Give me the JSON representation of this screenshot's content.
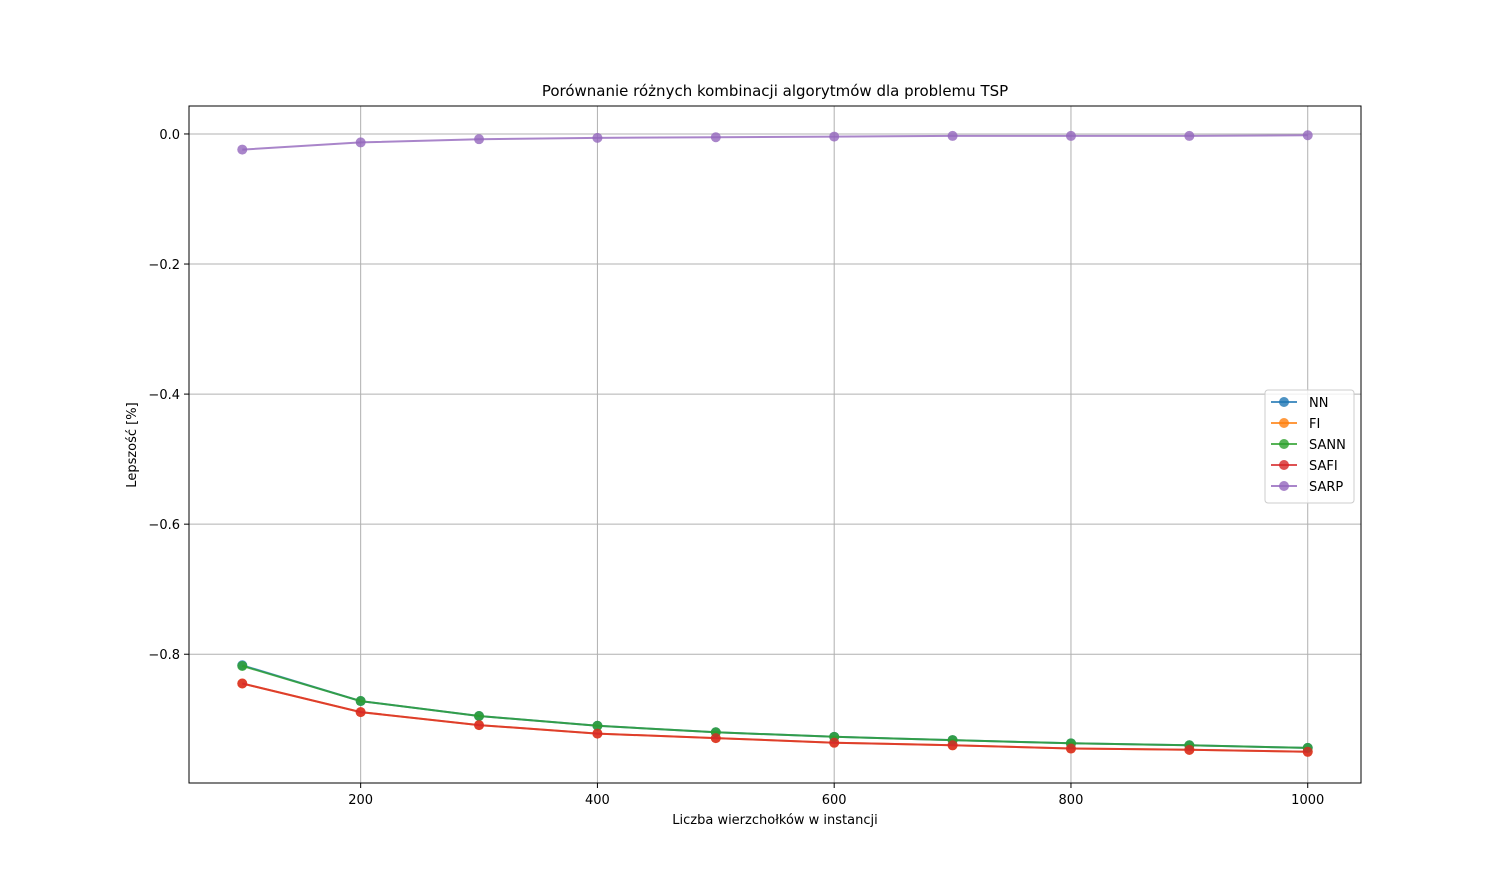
{
  "chart_data": {
    "type": "line",
    "title": "Porównanie różnych kombinacji algorytmów dla problemu TSP",
    "xlabel": "Liczba wierzchołków w instancji",
    "ylabel": "Lepszość [%]",
    "x": [
      100,
      200,
      300,
      400,
      500,
      600,
      700,
      800,
      900,
      1000
    ],
    "xlim": [
      55,
      1045
    ],
    "ylim": [
      -0.998,
      0.043
    ],
    "x_ticks": [
      200,
      400,
      600,
      800,
      1000
    ],
    "x_tick_labels": [
      "200",
      "400",
      "600",
      "800",
      "1000"
    ],
    "y_ticks": [
      0.0,
      -0.2,
      -0.4,
      -0.6,
      -0.8
    ],
    "y_tick_labels": [
      "0.0",
      "−0.2",
      "−0.4",
      "−0.6",
      "−0.8"
    ],
    "grid": true,
    "legend_position": "center-right",
    "series": [
      {
        "name": "NN",
        "color": "#1f77b4",
        "values": [
          -0.817,
          -0.872,
          -0.895,
          -0.91,
          -0.92,
          -0.927,
          -0.932,
          -0.937,
          -0.94,
          -0.944
        ]
      },
      {
        "name": "FI",
        "color": "#ff7f0e",
        "values": [
          -0.845,
          -0.889,
          -0.909,
          -0.922,
          -0.929,
          -0.936,
          -0.94,
          -0.945,
          -0.947,
          -0.95
        ]
      },
      {
        "name": "SANN",
        "color": "#2ca02c",
        "values": [
          -0.818,
          -0.872,
          -0.895,
          -0.91,
          -0.92,
          -0.927,
          -0.932,
          -0.937,
          -0.94,
          -0.944
        ]
      },
      {
        "name": "SAFI",
        "color": "#d62728",
        "values": [
          -0.845,
          -0.889,
          -0.909,
          -0.922,
          -0.929,
          -0.936,
          -0.94,
          -0.945,
          -0.947,
          -0.95
        ]
      },
      {
        "name": "SARP",
        "color": "#9467bd",
        "values": [
          -0.024,
          -0.013,
          -0.008,
          -0.006,
          -0.005,
          -0.004,
          -0.003,
          -0.003,
          -0.003,
          -0.002
        ]
      }
    ]
  }
}
